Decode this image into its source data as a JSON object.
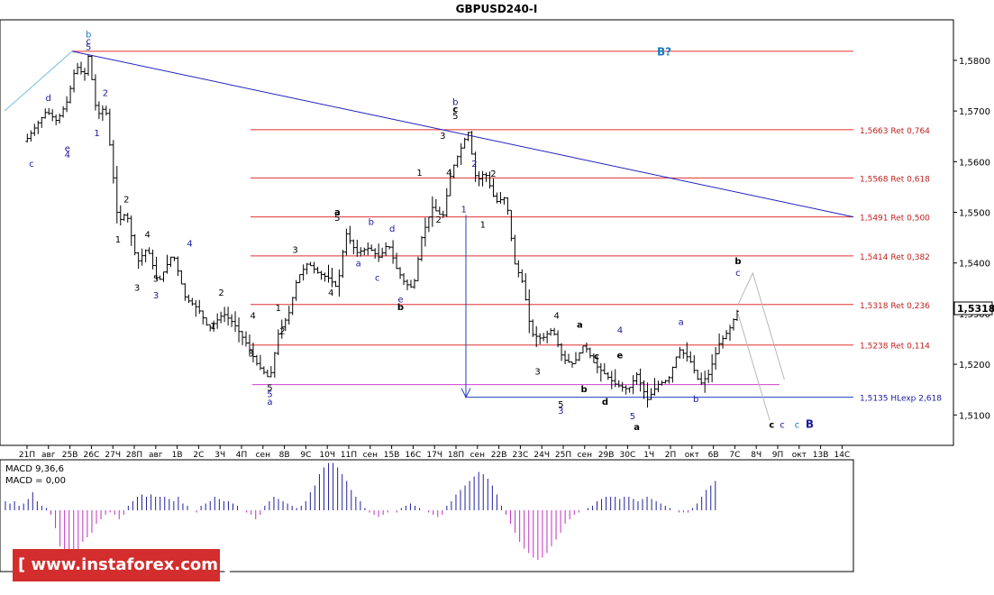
{
  "chart_data": {
    "type": "ohlc",
    "title": "GBPUSD240-I",
    "current_price": "1,5318",
    "ylim": [
      1.504,
      1.588
    ],
    "y_ticks": [
      "1,5800",
      "1,5700",
      "1,5600",
      "1,5500",
      "1,5400",
      "1,5300",
      "1,5200",
      "1,5100"
    ],
    "x_ticks": [
      "21П",
      "авг",
      "25В",
      "26С",
      "27Ч",
      "28П",
      "авг",
      "1В",
      "2С",
      "3Ч",
      "4П",
      "сен",
      "8В",
      "9С",
      "10Ч",
      "11П",
      "сен",
      "15В",
      "16С",
      "17Ч",
      "18П",
      "сен",
      "22В",
      "23С",
      "24Ч",
      "25П",
      "сен",
      "29В",
      "30С",
      "1Ч",
      "2П",
      "окт",
      "6В",
      "7С",
      "8Ч",
      "9П",
      "окт",
      "13В",
      "14С"
    ],
    "levels": [
      {
        "value": 1.5818,
        "label": "",
        "color": "#e03030"
      },
      {
        "value": 1.5663,
        "label": "1,5663 Ret 0,764",
        "color": "#e03030"
      },
      {
        "value": 1.5568,
        "label": "1,5568 Ret 0,618",
        "color": "#e03030"
      },
      {
        "value": 1.5491,
        "label": "1,5491 Ret 0,500",
        "color": "#e03030"
      },
      {
        "value": 1.5414,
        "label": "1,5414 Ret 0,382",
        "color": "#e03030"
      },
      {
        "value": 1.5318,
        "label": "1,5318 Ret 0,236",
        "color": "#e03030"
      },
      {
        "value": 1.5238,
        "label": "1,5238 Ret 0,114",
        "color": "#e03030"
      },
      {
        "value": 1.516,
        "label": "",
        "color": "#d040d0"
      },
      {
        "value": 1.5135,
        "label": "1,5135 HLexp 2,618",
        "color": "#2040c0"
      }
    ],
    "trendline": {
      "from": [
        3,
        1.5818
      ],
      "to": [
        39.2,
        1.5491
      ],
      "color": "#2020c0"
    },
    "arrow": {
      "x": 21.5,
      "from": 1.5495,
      "to": 1.5135,
      "color": "#2040c0"
    },
    "price_path": [
      [
        0,
        1.564
      ],
      [
        0.5,
        1.567
      ],
      [
        1,
        1.57
      ],
      [
        1.5,
        1.568
      ],
      [
        2,
        1.572
      ],
      [
        2.4,
        1.579
      ],
      [
        2.8,
        1.577
      ],
      [
        3,
        1.581
      ],
      [
        3.4,
        1.569
      ],
      [
        3.8,
        1.571
      ],
      [
        4.1,
        1.56
      ],
      [
        4.4,
        1.548
      ],
      [
        4.8,
        1.55
      ],
      [
        5.3,
        1.54
      ],
      [
        5.8,
        1.543
      ],
      [
        6.3,
        1.536
      ],
      [
        7,
        1.542
      ],
      [
        7.6,
        1.533
      ],
      [
        8.2,
        1.531
      ],
      [
        8.7,
        1.527
      ],
      [
        9.4,
        1.53
      ],
      [
        9.9,
        1.528
      ],
      [
        10.5,
        1.524
      ],
      [
        11,
        1.52
      ],
      [
        11.6,
        1.517
      ],
      [
        12,
        1.526
      ],
      [
        12.5,
        1.53
      ],
      [
        12.9,
        1.537
      ],
      [
        13.4,
        1.54
      ],
      [
        13.9,
        1.538
      ],
      [
        14.4,
        1.537
      ],
      [
        14.8,
        1.535
      ],
      [
        15.2,
        1.546
      ],
      [
        15.7,
        1.542
      ],
      [
        16.3,
        1.543
      ],
      [
        16.8,
        1.541
      ],
      [
        17.2,
        1.544
      ],
      [
        17.6,
        1.539
      ],
      [
        18,
        1.536
      ],
      [
        18.4,
        1.535
      ],
      [
        18.8,
        1.545
      ],
      [
        19.3,
        1.551
      ],
      [
        19.8,
        1.549
      ],
      [
        20.2,
        1.558
      ],
      [
        20.6,
        1.562
      ],
      [
        21,
        1.566
      ],
      [
        21.4,
        1.556
      ],
      [
        21.8,
        1.558
      ],
      [
        22.3,
        1.552
      ],
      [
        22.8,
        1.553
      ],
      [
        23.2,
        1.54
      ],
      [
        23.6,
        1.536
      ],
      [
        24,
        1.526
      ],
      [
        24.5,
        1.525
      ],
      [
        25,
        1.527
      ],
      [
        25.5,
        1.521
      ],
      [
        26,
        1.52
      ],
      [
        26.5,
        1.524
      ],
      [
        27,
        1.52
      ],
      [
        27.5,
        1.518
      ],
      [
        28,
        1.516
      ],
      [
        28.6,
        1.515
      ],
      [
        29,
        1.518
      ],
      [
        29.5,
        1.513
      ],
      [
        30,
        1.516
      ],
      [
        30.5,
        1.517
      ],
      [
        31,
        1.523
      ],
      [
        31.5,
        1.521
      ],
      [
        32,
        1.516
      ],
      [
        32.4,
        1.518
      ],
      [
        32.9,
        1.524
      ],
      [
        33.4,
        1.527
      ],
      [
        33.9,
        1.5318
      ]
    ],
    "macd": {
      "label": "MACD 9,36,6",
      "value_label": "MACD = 0,00",
      "values": [
        0.2,
        0.15,
        0.2,
        0.1,
        0.15,
        0.25,
        0.4,
        0.2,
        0.1,
        0.05,
        -0.1,
        -0.4,
        -0.8,
        -1.0,
        -1.1,
        -1.0,
        -0.9,
        -0.7,
        -0.6,
        -0.5,
        -0.3,
        -0.2,
        -0.1,
        -0.05,
        -0.1,
        -0.2,
        -0.1,
        0.1,
        0.2,
        0.3,
        0.35,
        0.3,
        0.35,
        0.3,
        0.3,
        0.3,
        0.25,
        0.2,
        0.3,
        0.15,
        0.1,
        0.0,
        -0.05,
        0.1,
        0.15,
        0.2,
        0.3,
        0.25,
        0.2,
        0.2,
        0.15,
        0.1,
        0.0,
        -0.05,
        -0.1,
        -0.2,
        -0.1,
        0.1,
        0.2,
        0.3,
        0.25,
        0.2,
        0.15,
        0.1,
        0.05,
        0.1,
        0.2,
        0.4,
        0.55,
        0.8,
        0.95,
        1.05,
        1.05,
        0.95,
        0.8,
        0.65,
        0.45,
        0.3,
        0.2,
        0.05,
        -0.05,
        -0.1,
        -0.15,
        -0.1,
        -0.05,
        0.0,
        -0.05,
        0.05,
        0.1,
        0.15,
        0.1,
        0.05,
        0.0,
        -0.05,
        -0.1,
        -0.15,
        -0.1,
        0.1,
        0.2,
        0.35,
        0.45,
        0.55,
        0.65,
        0.75,
        0.85,
        0.8,
        0.7,
        0.55,
        0.35,
        0.1,
        -0.1,
        -0.3,
        -0.5,
        -0.7,
        -0.85,
        -0.95,
        -1.05,
        -1.1,
        -1.05,
        -0.95,
        -0.8,
        -0.65,
        -0.5,
        -0.3,
        -0.2,
        -0.1,
        -0.05,
        0.0,
        0.05,
        0.1,
        0.2,
        0.25,
        0.3,
        0.3,
        0.3,
        0.25,
        0.3,
        0.3,
        0.25,
        0.2,
        0.25,
        0.3,
        0.25,
        0.2,
        0.15,
        0.1,
        0.05,
        0.0,
        -0.05,
        -0.05,
        -0.05,
        0.05,
        0.15,
        0.3,
        0.45,
        0.55,
        0.65
      ]
    },
    "wave_labels": [
      {
        "text": "b",
        "x": 3,
        "y": 1.5845,
        "color": "#1a7abf"
      },
      {
        "text": "c",
        "x": 3,
        "y": 1.5832,
        "color": "#1a1aa0"
      },
      {
        "text": "5",
        "x": 3,
        "y": 1.582,
        "color": "#1a1aa0"
      },
      {
        "text": "2",
        "x": 3.8,
        "y": 1.573,
        "color": "#1a1aa0"
      },
      {
        "text": "1",
        "x": 3.4,
        "y": 1.565,
        "color": "#1a1aa0"
      },
      {
        "text": "d",
        "x": 1.1,
        "y": 1.572,
        "color": "#1a1aa0"
      },
      {
        "text": "e",
        "x": 2,
        "y": 1.562,
        "color": "#1a1aa0"
      },
      {
        "text": "4",
        "x": 2,
        "y": 1.5608,
        "color": "#1a1aa0"
      },
      {
        "text": "c",
        "x": 0.3,
        "y": 1.559,
        "color": "#1a1aa0"
      },
      {
        "text": "2",
        "x": 4.8,
        "y": 1.552,
        "color": "#000000"
      },
      {
        "text": "1",
        "x": 4.4,
        "y": 1.544,
        "color": "#000000"
      },
      {
        "text": "4",
        "x": 5.8,
        "y": 1.545,
        "color": "#000000"
      },
      {
        "text": "3",
        "x": 5.3,
        "y": 1.5345,
        "color": "#000000"
      },
      {
        "text": "5",
        "x": 6.2,
        "y": 1.5363,
        "color": "#000000"
      },
      {
        "text": "3",
        "x": 6.2,
        "y": 1.533,
        "color": "#1a1aa0"
      },
      {
        "text": "4",
        "x": 7.8,
        "y": 1.5432,
        "color": "#1a1aa0"
      },
      {
        "text": "2",
        "x": 9.3,
        "y": 1.5335,
        "color": "#000000"
      },
      {
        "text": "1",
        "x": 8.9,
        "y": 1.527,
        "color": "#000000"
      },
      {
        "text": "4",
        "x": 10.8,
        "y": 1.529,
        "color": "#000000"
      },
      {
        "text": "3",
        "x": 10.7,
        "y": 1.5215,
        "color": "#000000"
      },
      {
        "text": "5",
        "x": 11.6,
        "y": 1.5148,
        "color": "#000000"
      },
      {
        "text": "5",
        "x": 11.6,
        "y": 1.5135,
        "color": "#1a1aa0"
      },
      {
        "text": "a",
        "x": 11.6,
        "y": 1.512,
        "color": "#1a1aa0"
      },
      {
        "text": "1",
        "x": 12,
        "y": 1.5305,
        "color": "#000000"
      },
      {
        "text": "2",
        "x": 12.2,
        "y": 1.526,
        "color": "#000000"
      },
      {
        "text": "3",
        "x": 12.8,
        "y": 1.542,
        "color": "#000000"
      },
      {
        "text": "4",
        "x": 14.5,
        "y": 1.5335,
        "color": "#000000"
      },
      {
        "text": "a",
        "x": 14.8,
        "y": 1.5495,
        "color": "#000000"
      },
      {
        "text": "5",
        "x": 14.8,
        "y": 1.5483,
        "color": "#000000"
      },
      {
        "text": "b",
        "x": 16.4,
        "y": 1.5475,
        "color": "#1a1aa0"
      },
      {
        "text": "a",
        "x": 15.8,
        "y": 1.5393,
        "color": "#1a1aa0"
      },
      {
        "text": "c",
        "x": 16.7,
        "y": 1.5365,
        "color": "#1a1aa0"
      },
      {
        "text": "d",
        "x": 17.4,
        "y": 1.5462,
        "color": "#1a1aa0"
      },
      {
        "text": "e",
        "x": 17.8,
        "y": 1.5322,
        "color": "#1a1aa0"
      },
      {
        "text": "b",
        "x": 17.8,
        "y": 1.5307,
        "color": "#000000"
      },
      {
        "text": "1",
        "x": 18.7,
        "y": 1.5572,
        "color": "#000000"
      },
      {
        "text": "2",
        "x": 19.6,
        "y": 1.548,
        "color": "#000000"
      },
      {
        "text": "3",
        "x": 19.8,
        "y": 1.5645,
        "color": "#000000"
      },
      {
        "text": "4",
        "x": 20.1,
        "y": 1.5572,
        "color": "#000000"
      },
      {
        "text": "b",
        "x": 20.4,
        "y": 1.5712,
        "color": "#1a1aa0"
      },
      {
        "text": "c",
        "x": 20.4,
        "y": 1.5698,
        "color": "#000000"
      },
      {
        "text": "5",
        "x": 20.4,
        "y": 1.5684,
        "color": "#000000"
      },
      {
        "text": "1",
        "x": 20.8,
        "y": 1.55,
        "color": "#1a1aa0"
      },
      {
        "text": "2",
        "x": 21.3,
        "y": 1.559,
        "color": "#1a1aa0"
      },
      {
        "text": "2",
        "x": 22.2,
        "y": 1.557,
        "color": "#000000"
      },
      {
        "text": "1",
        "x": 21.7,
        "y": 1.547,
        "color": "#000000"
      },
      {
        "text": "4",
        "x": 25.2,
        "y": 1.529,
        "color": "#000000"
      },
      {
        "text": "3",
        "x": 24.3,
        "y": 1.518,
        "color": "#000000"
      },
      {
        "text": "5",
        "x": 25.4,
        "y": 1.5115,
        "color": "#000000"
      },
      {
        "text": "3",
        "x": 25.4,
        "y": 1.5102,
        "color": "#1a1aa0"
      },
      {
        "text": "a",
        "x": 26.3,
        "y": 1.5272,
        "color": "#000000"
      },
      {
        "text": "b",
        "x": 26.5,
        "y": 1.5145,
        "color": "#000000"
      },
      {
        "text": "c",
        "x": 27.1,
        "y": 1.521,
        "color": "#000000"
      },
      {
        "text": "d",
        "x": 27.5,
        "y": 1.512,
        "color": "#000000"
      },
      {
        "text": "4",
        "x": 28.2,
        "y": 1.5262,
        "color": "#1a1aa0"
      },
      {
        "text": "e",
        "x": 28.2,
        "y": 1.5212,
        "color": "#000000"
      },
      {
        "text": "5",
        "x": 28.8,
        "y": 1.5092,
        "color": "#1a1aa0"
      },
      {
        "text": "a",
        "x": 29,
        "y": 1.507,
        "color": "#000000"
      },
      {
        "text": "a",
        "x": 31.1,
        "y": 1.5278,
        "color": "#1a1aa0"
      },
      {
        "text": "b",
        "x": 31.8,
        "y": 1.5125,
        "color": "#1a1aa0"
      },
      {
        "text": "b",
        "x": 33.8,
        "y": 1.5398,
        "color": "#000000"
      },
      {
        "text": "c",
        "x": 33.8,
        "y": 1.5375,
        "color": "#1a1aa0"
      },
      {
        "text": "B?",
        "x": 30.3,
        "y": 1.581,
        "color": "#1a7abf"
      },
      {
        "text": "c",
        "x": 35.4,
        "y": 1.5075,
        "color": "#000000"
      },
      {
        "text": "c",
        "x": 35.9,
        "y": 1.5075,
        "color": "#1a1aa0"
      },
      {
        "text": "c",
        "x": 36.6,
        "y": 1.5075,
        "color": "#1a7abf"
      },
      {
        "text": "B",
        "x": 37.2,
        "y": 1.5075,
        "color": "#1a1aa0"
      }
    ],
    "forecast": [
      {
        "points": [
          [
            33.8,
            1.5318
          ],
          [
            34.5,
            1.538
          ],
          [
            36.0,
            1.517
          ]
        ],
        "color": "#b8b8b8"
      },
      {
        "points": [
          [
            33.8,
            1.53
          ],
          [
            35.3,
            1.509
          ]
        ],
        "color": "#b8b8b8"
      }
    ]
  },
  "branding": {
    "logo_text": "[ www.instaforex.com ]"
  }
}
